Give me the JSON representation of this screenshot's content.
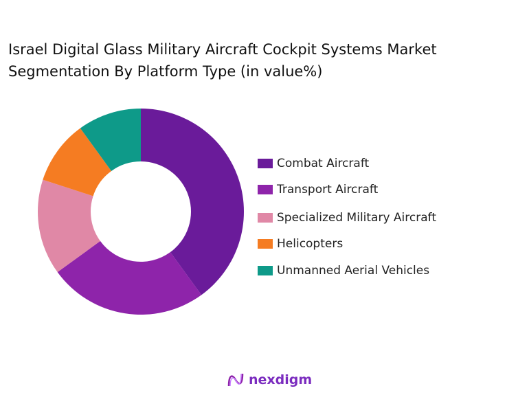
{
  "chart_data": {
    "type": "donut",
    "title": " Israel Digital Glass Military Aircraft Cockpit Systems Market\nSegmentation By Platform Type (in value%)",
    "categories": [
      "Combat Aircraft",
      "Transport Aircraft",
      "Specialized Military Aircraft",
      "Helicopters",
      "Unmanned Aerial Vehicles"
    ],
    "values": [
      40,
      25,
      15,
      10,
      10
    ],
    "colors": [
      "#6a1b9a",
      "#8e24aa",
      "#e088a6",
      "#f57c22",
      "#0e9a89"
    ],
    "legend": "right"
  },
  "logo": {
    "text": "nexdigm"
  }
}
